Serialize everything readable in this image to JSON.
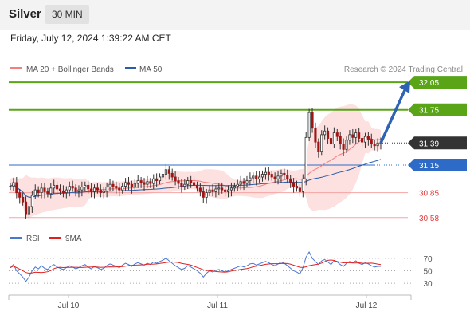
{
  "header": {
    "instrument": "Silver",
    "timeframe": "30 MIN"
  },
  "datetime": "Friday, July 12, 2024 1:39:22 AM CET",
  "legend": [
    {
      "label": "MA 20 + Bollinger Bands",
      "color": "#f08080"
    },
    {
      "label": "MA 50",
      "color": "#2a5da8"
    }
  ],
  "credit": "Research © 2024 Trading Central",
  "chart_data": {
    "type": "candlestick",
    "yrange": [
      30.5,
      32.12
    ],
    "levels": [
      {
        "value": "32.05",
        "kind": "resistance",
        "color": "#5aa418"
      },
      {
        "value": "31.75",
        "kind": "resistance",
        "color": "#5aa418"
      },
      {
        "value": "31.39",
        "kind": "last",
        "color": "#333333"
      },
      {
        "value": "31.15",
        "kind": "pivot",
        "color": "#2e6bc6"
      },
      {
        "value": "30.85",
        "kind": "support",
        "color": "#e63b3b"
      },
      {
        "value": "30.58",
        "kind": "support",
        "color": "#e63b3b"
      }
    ],
    "x_ticks": [
      "Jul 10",
      "Jul 11",
      "Jul 12"
    ],
    "projection": {
      "from": 31.39,
      "to": 32.05
    },
    "rsi": {
      "legend": [
        {
          "label": "RSI",
          "color": "#4a78d0"
        },
        {
          "label": "9MA",
          "color": "#e02020"
        }
      ],
      "levels": [
        "70",
        "50",
        "30"
      ]
    },
    "closes": [
      30.92,
      30.96,
      30.85,
      30.8,
      30.75,
      30.62,
      30.7,
      30.82,
      30.88,
      30.85,
      30.9,
      30.86,
      30.84,
      30.9,
      30.93,
      30.89,
      30.87,
      30.85,
      30.88,
      30.92,
      30.9,
      30.86,
      30.88,
      30.91,
      30.93,
      30.89,
      30.86,
      30.9,
      30.88,
      30.85,
      30.87,
      30.91,
      30.94,
      30.92,
      30.9,
      30.88,
      30.92,
      30.96,
      30.94,
      30.91,
      30.95,
      30.98,
      30.96,
      30.94,
      30.97,
      30.95,
      31.0,
      30.98,
      31.02,
      31.05,
      31.1,
      31.06,
      31.02,
      30.98,
      30.95,
      30.92,
      30.94,
      30.98,
      30.96,
      30.93,
      30.9,
      30.86,
      30.8,
      30.85,
      30.88,
      30.86,
      30.89,
      30.9,
      30.88,
      30.86,
      30.88,
      30.9,
      30.92,
      30.94,
      30.97,
      30.95,
      30.98,
      31.01,
      31.03,
      31.0,
      31.02,
      31.05,
      31.07,
      31.05,
      31.02,
      31.0,
      31.03,
      31.06,
      31.04,
      31.0,
      30.96,
      30.92,
      30.9,
      30.86,
      31.0,
      31.45,
      31.72,
      31.55,
      31.4,
      31.3,
      31.48,
      31.52,
      31.44,
      31.38,
      31.5,
      31.46,
      31.38,
      31.32,
      31.42,
      31.48,
      31.45,
      31.5,
      31.44,
      31.4,
      31.46,
      31.43,
      31.38,
      31.36,
      31.39,
      31.39
    ],
    "rsi_values": [
      55,
      60,
      50,
      45,
      40,
      33,
      40,
      50,
      56,
      53,
      58,
      54,
      52,
      57,
      60,
      56,
      54,
      52,
      55,
      58,
      56,
      53,
      55,
      58,
      60,
      56,
      53,
      57,
      55,
      52,
      54,
      58,
      61,
      59,
      57,
      55,
      59,
      62,
      60,
      57,
      61,
      63,
      61,
      59,
      62,
      60,
      64,
      62,
      65,
      67,
      70,
      66,
      62,
      58,
      55,
      52,
      54,
      58,
      56,
      53,
      50,
      46,
      40,
      46,
      50,
      48,
      51,
      52,
      50,
      48,
      50,
      52,
      54,
      56,
      58,
      56,
      58,
      61,
      62,
      59,
      61,
      63,
      65,
      63,
      60,
      58,
      61,
      64,
      62,
      58,
      54,
      50,
      48,
      45,
      55,
      72,
      80,
      70,
      65,
      60,
      66,
      68,
      64,
      60,
      66,
      64,
      60,
      57,
      62,
      65,
      63,
      66,
      62,
      60,
      63,
      61,
      58,
      56,
      57,
      57
    ]
  }
}
